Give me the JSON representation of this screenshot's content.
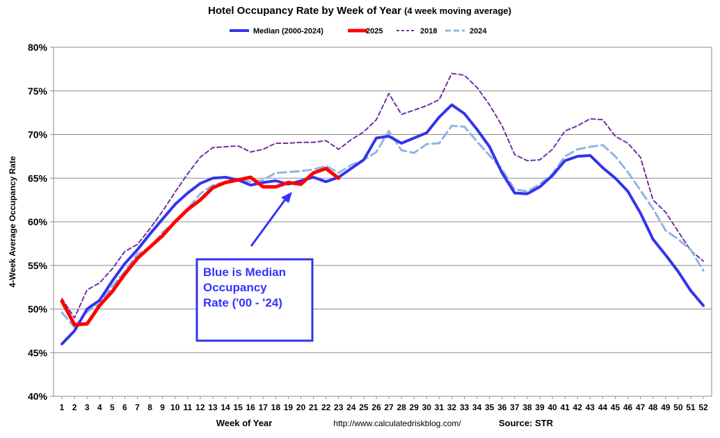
{
  "chart_data": {
    "type": "line",
    "title": "Hotel Occupancy Rate by  Week of Year",
    "subtitle": "(4 week moving average)",
    "xlabel": "Week of Year",
    "ylabel": "4-Week Average Occupancy Rate",
    "source_url": "http://www.calculatedriskblog.com/",
    "source": "Source: STR",
    "xlim": [
      1,
      52
    ],
    "ylim": [
      40,
      80
    ],
    "y_ticks": [
      "40%",
      "45%",
      "50%",
      "55%",
      "60%",
      "65%",
      "70%",
      "75%",
      "80%"
    ],
    "x_ticks": [
      "1",
      "2",
      "3",
      "4",
      "5",
      "6",
      "7",
      "8",
      "9",
      "10",
      "11",
      "12",
      "13",
      "14",
      "15",
      "16",
      "17",
      "18",
      "19",
      "20",
      "21",
      "22",
      "23",
      "24",
      "25",
      "26",
      "27",
      "28",
      "29",
      "30",
      "31",
      "32",
      "33",
      "34",
      "35",
      "36",
      "37",
      "38",
      "39",
      "40",
      "41",
      "42",
      "43",
      "44",
      "45",
      "46",
      "47",
      "48",
      "49",
      "50",
      "51",
      "52"
    ],
    "grid": "horizontal",
    "legend_position": "top",
    "annotation": {
      "lines": [
        "Blue is Median",
        "Occupancy",
        "Rate ('00 - '24)"
      ],
      "color": "#3333ff"
    },
    "series": [
      {
        "name": "Median (2000-2024)",
        "color": "#3333ee",
        "style": "solid",
        "x": [
          1,
          2,
          3,
          4,
          5,
          6,
          7,
          8,
          9,
          10,
          11,
          12,
          13,
          14,
          15,
          16,
          17,
          18,
          19,
          20,
          21,
          22,
          23,
          24,
          25,
          26,
          27,
          28,
          29,
          30,
          31,
          32,
          33,
          34,
          35,
          36,
          37,
          38,
          39,
          40,
          41,
          42,
          43,
          44,
          45,
          46,
          47,
          48,
          49,
          50,
          51,
          52
        ],
        "values": [
          46.0,
          47.5,
          50.0,
          51.0,
          53.2,
          55.2,
          56.8,
          58.6,
          60.3,
          62.0,
          63.3,
          64.4,
          65.0,
          65.1,
          64.8,
          64.2,
          64.5,
          64.7,
          64.3,
          64.7,
          65.1,
          64.6,
          65.1,
          66.1,
          67.1,
          69.6,
          69.8,
          69.0,
          69.6,
          70.2,
          72.0,
          73.4,
          72.4,
          70.6,
          68.6,
          65.6,
          63.3,
          63.2,
          64.0,
          65.3,
          67.0,
          67.5,
          67.6,
          66.2,
          65.0,
          63.5,
          61.0,
          58.0,
          56.2,
          54.3,
          52.1,
          50.4
        ]
      },
      {
        "name": "2025",
        "color": "#ff0000",
        "style": "solid",
        "x": [
          1,
          2,
          3,
          4,
          5,
          6,
          7,
          8,
          9,
          10,
          11,
          12,
          13,
          14,
          15,
          16,
          17,
          18,
          19,
          20,
          21,
          22,
          23
        ],
        "values": [
          50.9,
          48.2,
          48.3,
          50.4,
          52.0,
          54.0,
          55.8,
          57.1,
          58.4,
          60.0,
          61.4,
          62.5,
          63.9,
          64.5,
          64.8,
          65.1,
          64.0,
          64.0,
          64.5,
          64.3,
          65.6,
          66.1,
          65.0
        ]
      },
      {
        "name": "2018",
        "color": "#7030a0",
        "style": "dash",
        "x": [
          1,
          2,
          3,
          4,
          5,
          6,
          7,
          8,
          9,
          10,
          11,
          12,
          13,
          14,
          15,
          16,
          17,
          18,
          19,
          20,
          21,
          22,
          23,
          24,
          25,
          26,
          27,
          28,
          29,
          30,
          31,
          32,
          33,
          34,
          35,
          36,
          37,
          38,
          39,
          40,
          41,
          42,
          43,
          44,
          45,
          46,
          47,
          48,
          49,
          50,
          51,
          52
        ],
        "values": [
          51.2,
          49.0,
          52.2,
          53.0,
          54.6,
          56.6,
          57.4,
          59.2,
          61.2,
          63.4,
          65.5,
          67.4,
          68.5,
          68.6,
          68.7,
          68.0,
          68.3,
          69.0,
          69.0,
          69.1,
          69.1,
          69.3,
          68.3,
          69.4,
          70.3,
          71.7,
          74.7,
          72.3,
          72.8,
          73.3,
          74.0,
          77.0,
          76.8,
          75.4,
          73.4,
          71.0,
          67.7,
          67.0,
          67.1,
          68.3,
          70.4,
          71.0,
          71.8,
          71.7,
          69.8,
          69.0,
          67.4,
          62.5,
          61.1,
          58.9,
          56.7,
          55.5
        ]
      },
      {
        "name": "2024",
        "color": "#8fb4e3",
        "style": "dash",
        "x": [
          1,
          2,
          3,
          4,
          5,
          6,
          7,
          8,
          9,
          10,
          11,
          12,
          13,
          14,
          15,
          16,
          17,
          18,
          19,
          20,
          21,
          22,
          23,
          24,
          25,
          26,
          27,
          28,
          29,
          30,
          31,
          32,
          33,
          34,
          35,
          36,
          37,
          38,
          39,
          40,
          41,
          42,
          43,
          44,
          45,
          46,
          47,
          48,
          49,
          50,
          51,
          52
        ],
        "values": [
          49.6,
          47.9,
          49.7,
          50.6,
          52.6,
          54.3,
          56.3,
          57.0,
          58.8,
          60.0,
          61.5,
          63.2,
          64.2,
          64.6,
          64.8,
          64.6,
          64.8,
          65.6,
          65.7,
          65.8,
          66.0,
          66.4,
          65.6,
          66.5,
          67.1,
          68.0,
          70.4,
          68.2,
          67.9,
          68.9,
          69.0,
          71.0,
          70.9,
          69.2,
          67.6,
          66.0,
          63.7,
          63.5,
          64.3,
          65.5,
          67.5,
          68.3,
          68.6,
          68.8,
          67.5,
          65.7,
          63.6,
          61.5,
          59.0,
          58.0,
          56.8,
          54.4
        ]
      }
    ]
  }
}
